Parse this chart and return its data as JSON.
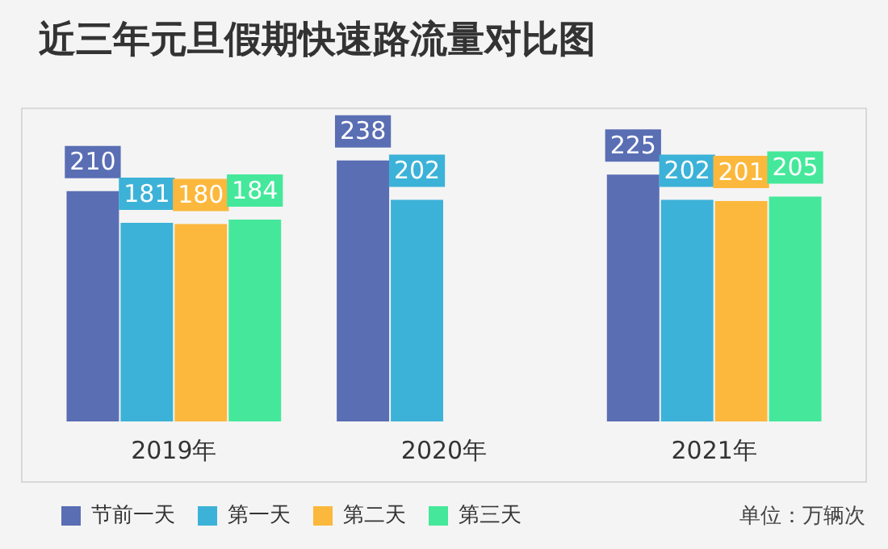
{
  "chart_data": {
    "type": "bar",
    "title": "近三年元旦假期快速路流量对比图",
    "categories": [
      "2019年",
      "2020年",
      "2021年"
    ],
    "series": [
      {
        "name": "节前一天",
        "color": "#5a6eb4",
        "values": [
          210,
          238,
          225
        ]
      },
      {
        "name": "第一天",
        "color": "#3cb2d8",
        "values": [
          181,
          202,
          202
        ]
      },
      {
        "name": "第二天",
        "color": "#fbb83c",
        "values": [
          180,
          null,
          201
        ]
      },
      {
        "name": "第三天",
        "color": "#45e89a",
        "values": [
          184,
          null,
          205
        ]
      }
    ],
    "ylim": [
      0,
      270
    ],
    "tick_labels": "x",
    "data_labels": true,
    "legend": "bottom left",
    "grid": false,
    "annotations": [
      "单位：万辆次"
    ]
  }
}
